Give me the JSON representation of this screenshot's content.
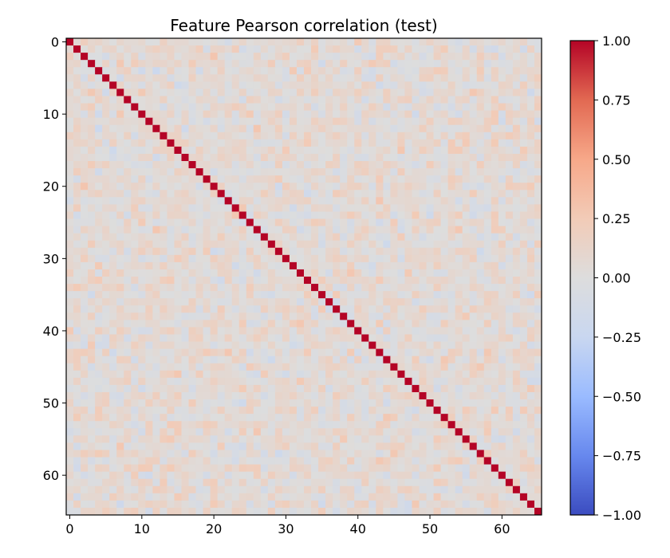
{
  "chart_data": {
    "type": "heatmap",
    "title": "Feature Pearson correlation (test)",
    "xlabel": "",
    "ylabel": "",
    "n_features": 66,
    "x_ticks": [
      0,
      10,
      20,
      30,
      40,
      50,
      60
    ],
    "y_ticks": [
      0,
      10,
      20,
      30,
      40,
      50,
      60
    ],
    "x_tick_labels": [
      "0",
      "10",
      "20",
      "30",
      "40",
      "50",
      "60"
    ],
    "y_tick_labels": [
      "0",
      "10",
      "20",
      "30",
      "40",
      "50",
      "60"
    ],
    "diagonal_value": 1.0,
    "off_diagonal_range_observed": [
      -0.3,
      0.6
    ],
    "colormap": "coolwarm",
    "colormap_stops": [
      "#3b4cc0",
      "#6788ee",
      "#9abbff",
      "#c9d7f0",
      "#dddddd",
      "#f2cbb7",
      "#f7a889",
      "#e26952",
      "#b40426"
    ],
    "colorbar": {
      "vmin": -1.0,
      "vmax": 1.0,
      "ticks": [
        1.0,
        0.75,
        0.5,
        0.25,
        0.0,
        -0.25,
        -0.5,
        -0.75,
        -1.0
      ],
      "tick_labels": [
        "1.00",
        "0.75",
        "0.50",
        "0.25",
        "0.00",
        "−0.25",
        "−0.50",
        "−0.75",
        "−1.00"
      ]
    },
    "grid": false,
    "legend": "colorbar-right"
  }
}
